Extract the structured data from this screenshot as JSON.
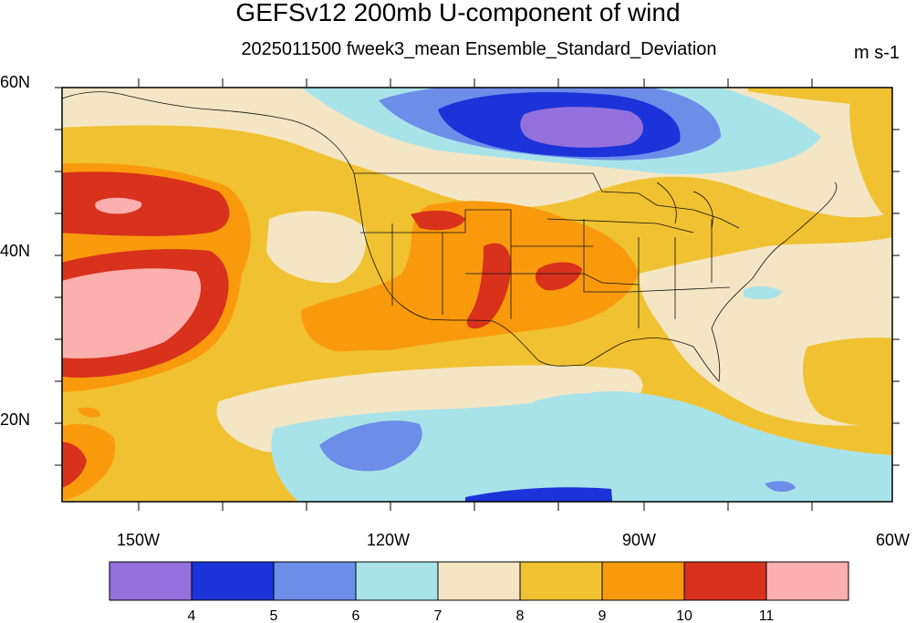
{
  "title": "GEFSv12 200mb U-component of wind",
  "subtitle": "2025011500 fweek3_mean Ensemble_Standard_Deviation",
  "units": "m s-1",
  "map": {
    "projection": "cylindrical equidistant",
    "lon_range": [
      -160,
      -60
    ],
    "lat_range": [
      10,
      60
    ],
    "lat_labels": [
      "60N",
      "40N",
      "20N"
    ],
    "lon_labels": [
      "150W",
      "120W",
      "90W",
      "60W"
    ]
  },
  "colorbar": {
    "levels": [
      "4",
      "5",
      "6",
      "7",
      "8",
      "9",
      "10",
      "11"
    ],
    "colors": [
      "#9370db",
      "#1c33d9",
      "#6c8ee8",
      "#a9e3ea",
      "#f4e6c4",
      "#f0c231",
      "#f99a0c",
      "#d8311c",
      "#fbafae"
    ]
  }
}
